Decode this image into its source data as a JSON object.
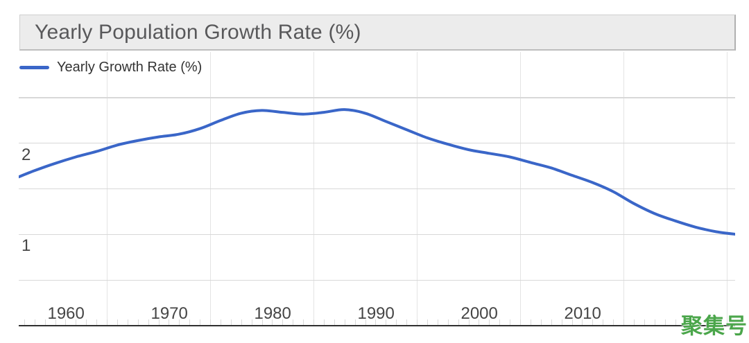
{
  "header": {
    "title": "Yearly Population Growth Rate (%)",
    "background": "#ECECEC",
    "text_color": "#58585A"
  },
  "legend": {
    "label": "Yearly Growth Rate (%)",
    "swatch_color": "#3A66C8",
    "position": "top-left"
  },
  "watermark": {
    "text": "聚集号",
    "color": "#4BA64B"
  },
  "colors": {
    "series_line": "#3A66C8",
    "h_gridline": "#D8D8D8",
    "v_gridline": "#E4E4E4",
    "minor_tick": "#DADADA",
    "axis_baseline": "#2F2F2F",
    "axis_label": "#454545"
  },
  "chart_data": {
    "type": "line",
    "title": "Yearly Population Growth Rate (%)",
    "xlabel": "",
    "ylabel": "",
    "grid": true,
    "legend_position": "top-left",
    "x_axis": {
      "unit": "year",
      "visible_range": [
        1953.5,
        2022.8
      ],
      "label_years": [
        1960,
        1970,
        1980,
        1990,
        2000,
        2010
      ],
      "gridline_years": [
        1962,
        1972,
        1982,
        1992,
        2002,
        2012,
        2022
      ],
      "minor_tick_step_years": 1
    },
    "y_axis": {
      "unit": "percent",
      "range": [
        0,
        3
      ],
      "gridline_values": [
        0.5,
        1.0,
        1.5,
        2.0,
        2.5
      ],
      "label_values": [
        1,
        2
      ]
    },
    "series": [
      {
        "name": "Yearly Growth Rate (%)",
        "color": "#3A66C8",
        "points": [
          [
            1953,
            1.61
          ],
          [
            1955,
            1.7
          ],
          [
            1957,
            1.78
          ],
          [
            1959,
            1.85
          ],
          [
            1961,
            1.91
          ],
          [
            1963,
            1.98
          ],
          [
            1965,
            2.03
          ],
          [
            1967,
            2.07
          ],
          [
            1969,
            2.1
          ],
          [
            1971,
            2.16
          ],
          [
            1973,
            2.25
          ],
          [
            1975,
            2.33
          ],
          [
            1977,
            2.36
          ],
          [
            1979,
            2.34
          ],
          [
            1981,
            2.32
          ],
          [
            1983,
            2.34
          ],
          [
            1985,
            2.37
          ],
          [
            1987,
            2.33
          ],
          [
            1989,
            2.24
          ],
          [
            1991,
            2.15
          ],
          [
            1993,
            2.06
          ],
          [
            1995,
            1.99
          ],
          [
            1997,
            1.93
          ],
          [
            1999,
            1.89
          ],
          [
            2001,
            1.85
          ],
          [
            2003,
            1.79
          ],
          [
            2005,
            1.73
          ],
          [
            2007,
            1.65
          ],
          [
            2009,
            1.57
          ],
          [
            2011,
            1.47
          ],
          [
            2013,
            1.34
          ],
          [
            2015,
            1.23
          ],
          [
            2017,
            1.15
          ],
          [
            2019,
            1.08
          ],
          [
            2021,
            1.03
          ],
          [
            2023,
            1.0
          ]
        ]
      }
    ]
  }
}
